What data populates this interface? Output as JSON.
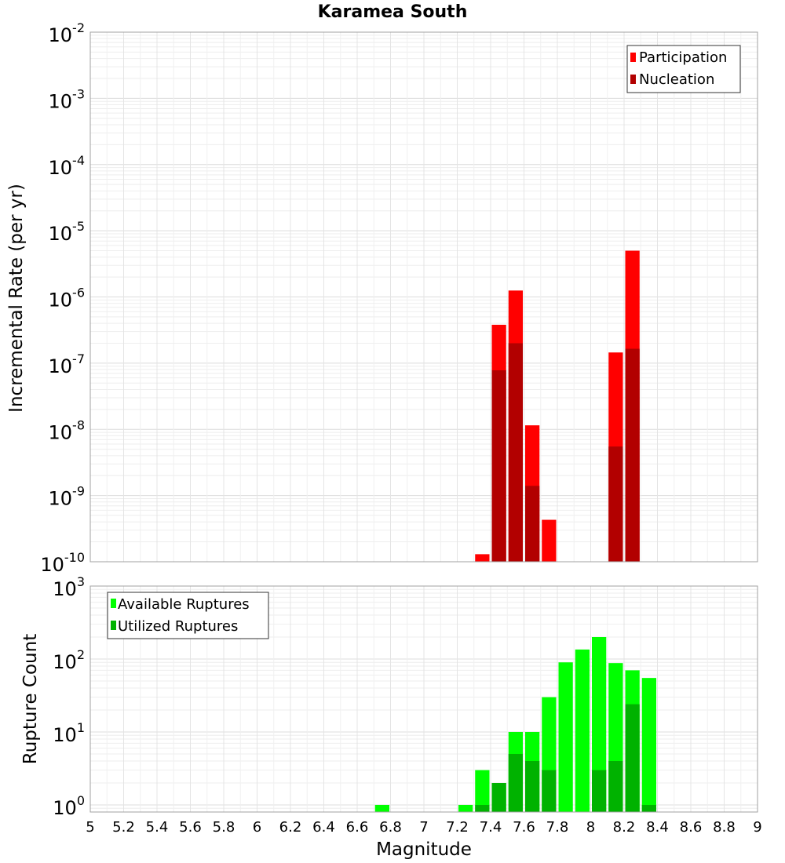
{
  "chart_data": [
    {
      "type": "bar",
      "title": "Karamea South",
      "ylabel": "Incremental Rate (per yr)",
      "xlabel": "",
      "yscale": "log",
      "ylim": [
        1e-10,
        0.01
      ],
      "y_ticks": [
        {
          "base": "10",
          "exp": "-2"
        },
        {
          "base": "10",
          "exp": "-3"
        },
        {
          "base": "10",
          "exp": "-4"
        },
        {
          "base": "10",
          "exp": "-5"
        },
        {
          "base": "10",
          "exp": "-6"
        },
        {
          "base": "10",
          "exp": "-7"
        },
        {
          "base": "10",
          "exp": "-8"
        },
        {
          "base": "10",
          "exp": "-9"
        },
        {
          "base": "10",
          "exp": "-10"
        }
      ],
      "legend": {
        "position": "top-right",
        "entries": [
          "Participation",
          "Nucleation"
        ]
      },
      "series": [
        {
          "name": "Participation",
          "color": "#ff0000",
          "x": [
            7.35,
            7.45,
            7.55,
            7.65,
            7.75,
            8.15,
            8.25
          ],
          "values": [
            1.3e-10,
            3.8e-07,
            1.25e-06,
            1.15e-08,
            4.3e-10,
            1.45e-07,
            5e-06
          ]
        },
        {
          "name": "Nucleation",
          "color": "#b20000",
          "x": [
            7.45,
            7.55,
            7.65,
            8.15,
            8.25
          ],
          "values": [
            7.8e-08,
            2e-07,
            1.4e-09,
            5.5e-09,
            1.65e-07
          ]
        }
      ]
    },
    {
      "type": "bar",
      "title": "",
      "ylabel": "Rupture Count",
      "xlabel": "Magnitude",
      "yscale": "log",
      "ylim": [
        0.8,
        1000
      ],
      "y_ticks": [
        {
          "base": "10",
          "exp": "3"
        },
        {
          "base": "10",
          "exp": "2"
        },
        {
          "base": "10",
          "exp": "1"
        },
        {
          "base": "10",
          "exp": "0"
        }
      ],
      "legend": {
        "position": "top-left",
        "entries": [
          "Available Ruptures",
          "Utilized Ruptures"
        ]
      },
      "series": [
        {
          "name": "Available Ruptures",
          "color": "#00ff00",
          "x": [
            6.75,
            7.25,
            7.35,
            7.45,
            7.55,
            7.65,
            7.75,
            7.85,
            7.95,
            8.05,
            8.15,
            8.25,
            8.35
          ],
          "values": [
            1,
            1,
            3,
            2,
            10,
            10,
            30,
            90,
            135,
            200,
            88,
            70,
            55
          ]
        },
        {
          "name": "Utilized Ruptures",
          "color": "#00b200",
          "x": [
            7.35,
            7.45,
            7.55,
            7.65,
            7.75,
            8.05,
            8.15,
            8.25,
            8.35
          ],
          "values": [
            1,
            2,
            5,
            4,
            3,
            3,
            4,
            24,
            1
          ]
        }
      ]
    }
  ],
  "x_axis": {
    "xlim": [
      5,
      9
    ],
    "ticks": [
      "5",
      "5.2",
      "5.4",
      "5.6",
      "5.8",
      "6",
      "6.2",
      "6.4",
      "6.6",
      "6.8",
      "7",
      "7.2",
      "7.4",
      "7.6",
      "7.8",
      "8",
      "8.2",
      "8.4",
      "8.6",
      "8.8",
      "9"
    ],
    "bin_width": 0.1
  },
  "grid": true
}
